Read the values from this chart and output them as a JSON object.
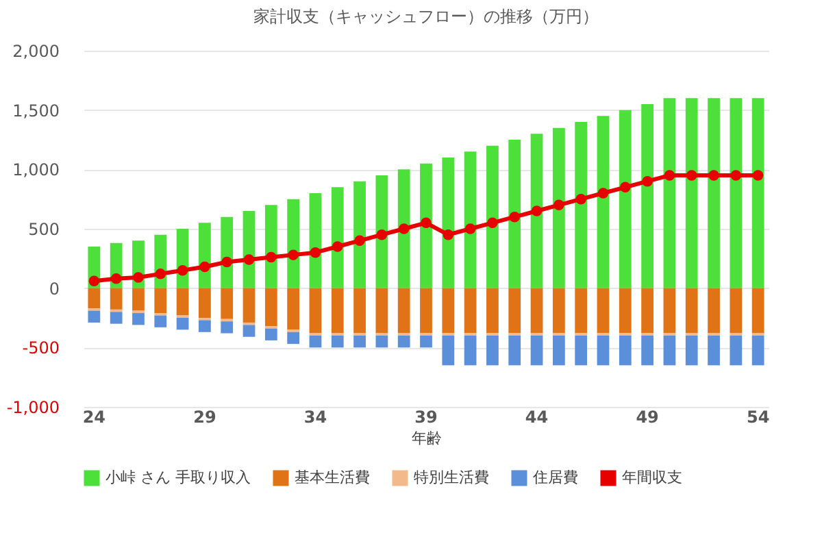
{
  "chart_data": {
    "type": "bar",
    "title": "家計収支（キャッシュフロー）の推移（万円）",
    "xlabel": "年齢",
    "categories": [
      "24",
      null,
      null,
      null,
      null,
      "29",
      null,
      null,
      null,
      null,
      "34",
      null,
      null,
      null,
      null,
      "39",
      null,
      null,
      null,
      null,
      "44",
      null,
      null,
      null,
      null,
      "49",
      null,
      null,
      null,
      null,
      "54"
    ],
    "stacked": true,
    "series": [
      {
        "name": "小峠 さん 手取り収入",
        "color": "#4ddf3a",
        "values": [
          350,
          380,
          400,
          450,
          500,
          550,
          600,
          650,
          700,
          750,
          800,
          850,
          900,
          950,
          1000,
          1050,
          1100,
          1150,
          1200,
          1250,
          1300,
          1350,
          1400,
          1450,
          1500,
          1550,
          1600,
          1600,
          1600,
          1600,
          1600
        ]
      },
      {
        "name": "基本生活費",
        "color": "#e07316",
        "values": [
          -170,
          -180,
          -190,
          -210,
          -230,
          -250,
          -260,
          -290,
          -320,
          -350,
          -380,
          -380,
          -380,
          -380,
          -380,
          -380,
          -380,
          -380,
          -380,
          -380,
          -380,
          -380,
          -380,
          -380,
          -380,
          -380,
          -380,
          -380,
          -380,
          -380,
          -380
        ]
      },
      {
        "name": "特別生活費",
        "color": "#f4b98a",
        "values": [
          -20,
          -20,
          -20,
          -20,
          -20,
          -20,
          -20,
          -20,
          -20,
          -20,
          -20,
          -20,
          -20,
          -20,
          -20,
          -20,
          -20,
          -20,
          -20,
          -20,
          -20,
          -20,
          -20,
          -20,
          -20,
          -20,
          -20,
          -20,
          -20,
          -20,
          -20
        ]
      },
      {
        "name": "住居費",
        "color": "#5b8fd9",
        "values": [
          -100,
          -100,
          -100,
          -100,
          -100,
          -100,
          -100,
          -100,
          -100,
          -100,
          -100,
          -100,
          -100,
          -100,
          -100,
          -100,
          -250,
          -250,
          -250,
          -250,
          -250,
          -250,
          -250,
          -250,
          -250,
          -250,
          -250,
          -250,
          -250,
          -250,
          -250
        ]
      },
      {
        "name": "年間収支",
        "color": "#e60000",
        "type": "line",
        "values": [
          60,
          80,
          90,
          120,
          150,
          180,
          220,
          240,
          260,
          280,
          300,
          350,
          400,
          450,
          500,
          550,
          450,
          500,
          550,
          600,
          650,
          700,
          750,
          800,
          850,
          900,
          950,
          950,
          950,
          950,
          950
        ]
      }
    ],
    "ylim": [
      -1000,
      2000
    ],
    "yticks": [
      {
        "value": -1000,
        "label": "-1,000"
      },
      -500,
      0,
      500,
      {
        "value": 1000,
        "label": "1,000"
      },
      {
        "value": 1500,
        "label": "1,500"
      },
      {
        "value": 2000,
        "label": "2,000"
      }
    ],
    "grid": "y",
    "legend": "bottom",
    "marker": "circle",
    "line_style": "solid"
  }
}
